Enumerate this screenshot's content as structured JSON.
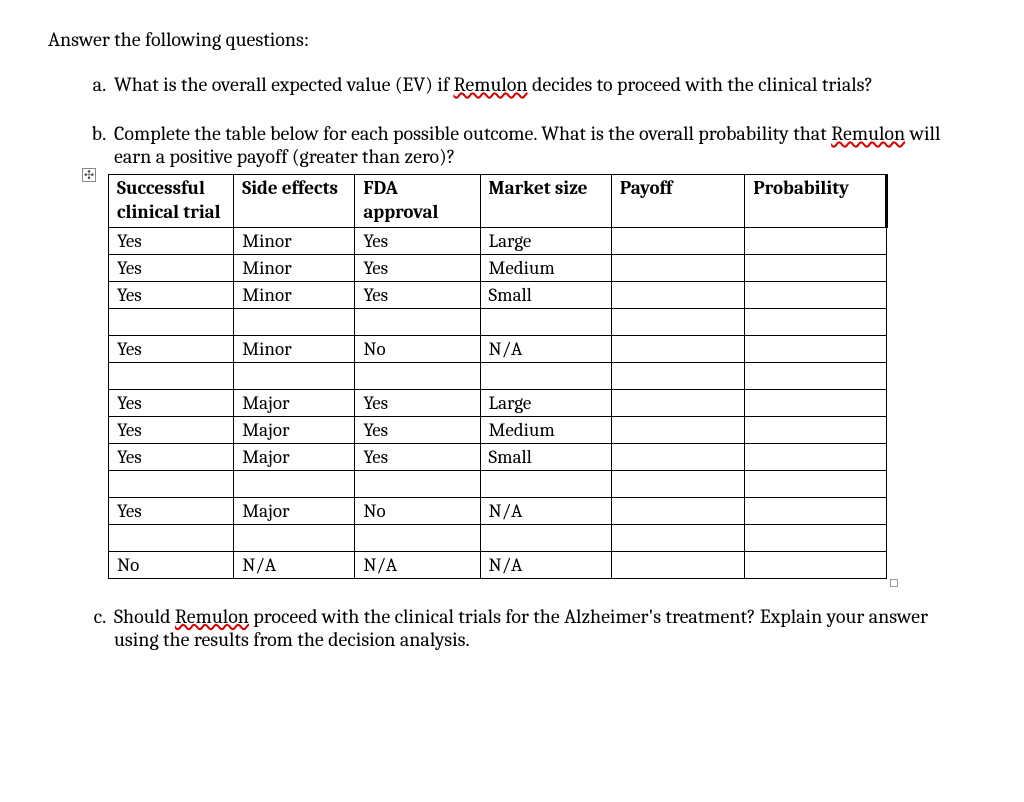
{
  "intro": "Answer the following questions:",
  "questions": {
    "a": {
      "text_pre": "What is the overall expected value (EV) if ",
      "spell": "Remulon",
      "text_post": " decides to proceed with the clinical trials?"
    },
    "b": {
      "text_pre": "Complete the table below for each possible outcome. What is the overall probability that ",
      "spell": "Remulon",
      "text_post": " will earn a positive payoff (greater than zero)?"
    },
    "c": {
      "text_pre": "Should ",
      "spell": "Remulon",
      "text_post": " proceed with the clinical trials for the Alzheimer's treatment? Explain your answer using the results from the decision analysis."
    }
  },
  "table": {
    "headers": [
      "Successful clinical trial",
      "Side effects",
      "FDA approval",
      "Market size",
      "Payoff",
      "Probability"
    ],
    "rows": [
      [
        "Yes",
        "Minor",
        "Yes",
        "Large",
        "",
        ""
      ],
      [
        "Yes",
        "Minor",
        "Yes",
        "Medium",
        "",
        ""
      ],
      [
        "Yes",
        "Minor",
        "Yes",
        "Small",
        "",
        ""
      ],
      [
        "",
        "",
        "",
        "",
        "",
        ""
      ],
      [
        "Yes",
        "Minor",
        "No",
        "N/A",
        "",
        ""
      ],
      [
        "",
        "",
        "",
        "",
        "",
        ""
      ],
      [
        "Yes",
        "Major",
        "Yes",
        "Large",
        "",
        ""
      ],
      [
        "Yes",
        "Major",
        "Yes",
        "Medium",
        "",
        ""
      ],
      [
        "Yes",
        "Major",
        "Yes",
        "Small",
        "",
        ""
      ],
      [
        "",
        "",
        "",
        "",
        "",
        ""
      ],
      [
        "Yes",
        "Major",
        "No",
        "N/A",
        "",
        ""
      ],
      [
        "",
        "",
        "",
        "",
        "",
        ""
      ],
      [
        "No",
        "N/A",
        "N/A",
        "N/A",
        "",
        ""
      ]
    ]
  },
  "anchor_glyph": "✣"
}
